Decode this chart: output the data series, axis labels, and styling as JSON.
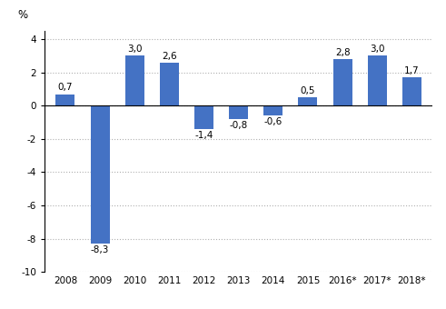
{
  "categories": [
    "2008",
    "2009",
    "2010",
    "2011",
    "2012",
    "2013",
    "2014",
    "2015",
    "2016*",
    "2017*",
    "2018*"
  ],
  "values": [
    0.7,
    -8.3,
    3.0,
    2.6,
    -1.4,
    -0.8,
    -0.6,
    0.5,
    2.8,
    3.0,
    1.7
  ],
  "labels": [
    "0,7",
    "-8,3",
    "3,0",
    "2,6",
    "-1,4",
    "-0,8",
    "-0,6",
    "0,5",
    "2,8",
    "3,0",
    "1,7"
  ],
  "bar_color": "#4472C4",
  "ylim": [
    -10,
    4.5
  ],
  "yticks": [
    -10,
    -8,
    -6,
    -4,
    -2,
    0,
    2,
    4
  ],
  "ylabel": "%",
  "background_color": "#ffffff",
  "grid_color": "#b0b0b0",
  "label_fontsize": 7.5,
  "axis_fontsize": 7.5,
  "bar_width": 0.55
}
